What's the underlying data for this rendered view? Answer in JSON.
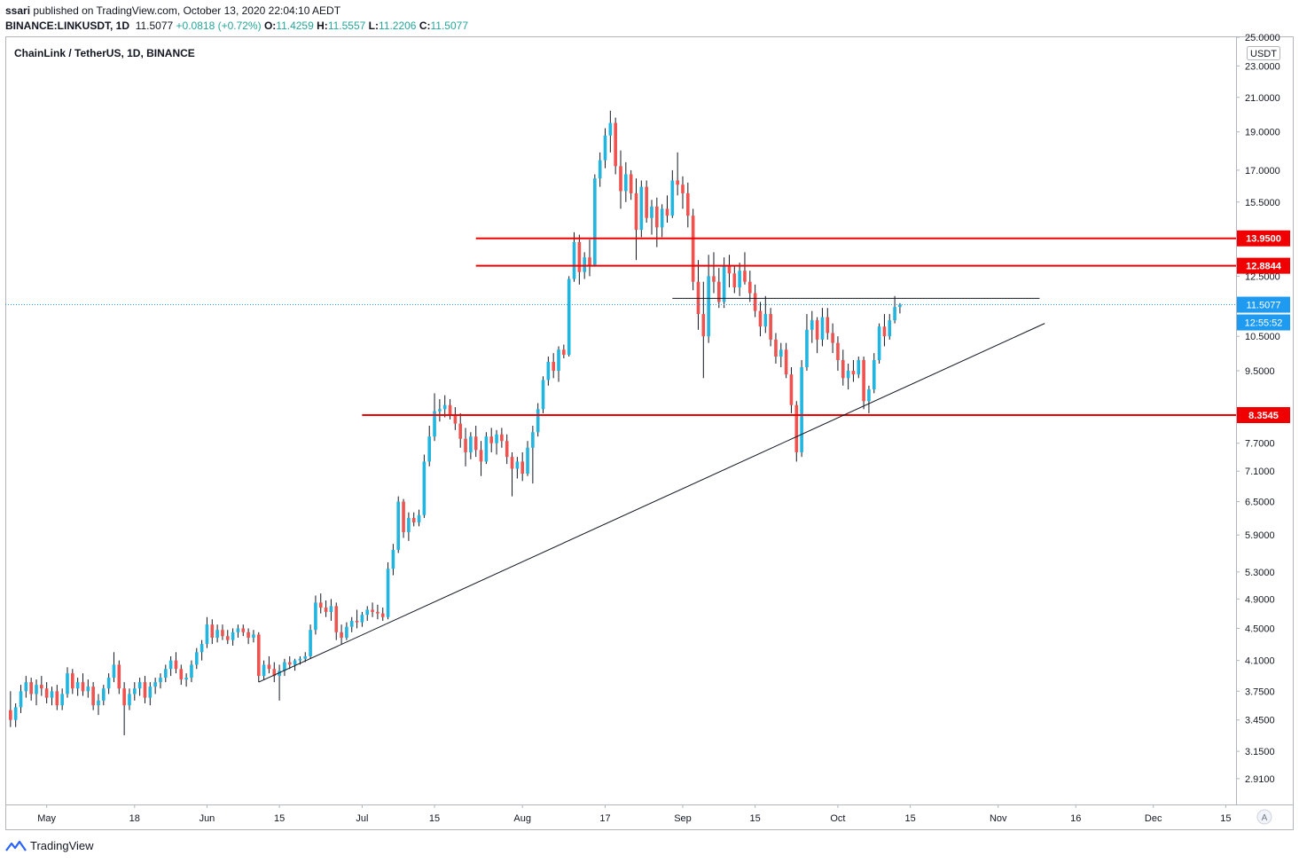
{
  "publish": {
    "author": "ssari",
    "text": "published on TradingView.com, October 13, 2020 22:04:10 AEDT"
  },
  "ohlc": {
    "symbol": "BINANCE:LINKUSDT, 1D",
    "last": "11.5077",
    "change": "+0.0818 (+0.72%)",
    "o_label": "O:",
    "o": "11.4259",
    "h_label": "H:",
    "h": "11.5557",
    "l_label": "L:",
    "l": "11.2206",
    "c_label": "C:",
    "c": "11.5077"
  },
  "chart_data": {
    "type": "candlestick",
    "title": "ChainLink / TetherUS, 1D, BINANCE",
    "currency": "USDT",
    "y_scale": "log",
    "ylim": [
      2.7,
      25.0
    ],
    "y_ticks": [
      "2.9100",
      "3.1500",
      "3.4500",
      "3.7500",
      "4.1000",
      "4.5000",
      "4.9000",
      "5.3000",
      "5.9000",
      "6.5000",
      "7.1000",
      "7.7000",
      "9.5000",
      "10.5000",
      "12.5000",
      "15.5000",
      "17.0000",
      "19.0000",
      "21.0000",
      "23.0000",
      "25.0000"
    ],
    "x_ticks": [
      "May",
      "18",
      "Jun",
      "15",
      "Jul",
      "15",
      "Aug",
      "17",
      "Sep",
      "15",
      "Oct",
      "15",
      "Nov",
      "16",
      "Dec",
      "15"
    ],
    "x_tick_dates": [
      "2020-05-01",
      "2020-05-18",
      "2020-06-01",
      "2020-06-15",
      "2020-07-01",
      "2020-07-15",
      "2020-08-01",
      "2020-08-17",
      "2020-09-01",
      "2020-09-15",
      "2020-10-01",
      "2020-10-15",
      "2020-11-01",
      "2020-11-16",
      "2020-12-01",
      "2020-12-15"
    ],
    "xlim": [
      "2020-04-23",
      "2020-12-17"
    ],
    "horizontal_levels": [
      {
        "price": 13.95,
        "label": "13.9500",
        "color": "#f00000",
        "start": "2020-07-23"
      },
      {
        "price": 12.8844,
        "label": "12.8844",
        "color": "#f00000",
        "start": "2020-07-23"
      },
      {
        "price": 8.3545,
        "label": "8.3545",
        "color": "#f00000",
        "start": "2020-07-01"
      }
    ],
    "resistance_line": {
      "price": 11.72,
      "start": "2020-08-30",
      "end": "2020-11-09"
    },
    "trendline": {
      "start_date": "2020-06-11",
      "start_price": 3.85,
      "end_date": "2020-11-10",
      "end_price": 10.9
    },
    "last_price": {
      "price": 11.5077,
      "label": "11.5077",
      "countdown": "12:55:52"
    },
    "candles": [
      [
        "2020-04-24",
        3.55,
        3.75,
        3.38,
        3.45
      ],
      [
        "2020-04-25",
        3.45,
        3.62,
        3.38,
        3.58
      ],
      [
        "2020-04-26",
        3.58,
        3.82,
        3.52,
        3.75
      ],
      [
        "2020-04-27",
        3.75,
        3.92,
        3.68,
        3.85
      ],
      [
        "2020-04-28",
        3.85,
        3.9,
        3.65,
        3.72
      ],
      [
        "2020-04-29",
        3.72,
        3.88,
        3.6,
        3.82
      ],
      [
        "2020-04-30",
        3.82,
        3.92,
        3.7,
        3.78
      ],
      [
        "2020-05-01",
        3.78,
        3.85,
        3.62,
        3.68
      ],
      [
        "2020-05-02",
        3.68,
        3.8,
        3.6,
        3.75
      ],
      [
        "2020-05-03",
        3.75,
        3.82,
        3.55,
        3.6
      ],
      [
        "2020-05-04",
        3.6,
        3.78,
        3.55,
        3.72
      ],
      [
        "2020-05-05",
        3.72,
        4.02,
        3.68,
        3.95
      ],
      [
        "2020-05-06",
        3.95,
        4.0,
        3.72,
        3.78
      ],
      [
        "2020-05-07",
        3.78,
        3.9,
        3.7,
        3.85
      ],
      [
        "2020-05-08",
        3.85,
        3.95,
        3.7,
        3.75
      ],
      [
        "2020-05-09",
        3.75,
        3.88,
        3.68,
        3.8
      ],
      [
        "2020-05-10",
        3.8,
        3.85,
        3.55,
        3.6
      ],
      [
        "2020-05-11",
        3.6,
        3.72,
        3.5,
        3.65
      ],
      [
        "2020-05-12",
        3.65,
        3.82,
        3.6,
        3.78
      ],
      [
        "2020-05-13",
        3.78,
        3.95,
        3.72,
        3.9
      ],
      [
        "2020-05-14",
        3.9,
        4.2,
        3.85,
        4.05
      ],
      [
        "2020-05-15",
        4.05,
        4.1,
        3.72,
        3.78
      ],
      [
        "2020-05-16",
        3.78,
        3.85,
        3.3,
        3.6
      ],
      [
        "2020-05-17",
        3.6,
        3.78,
        3.55,
        3.72
      ],
      [
        "2020-05-18",
        3.72,
        3.85,
        3.65,
        3.78
      ],
      [
        "2020-05-19",
        3.78,
        3.9,
        3.7,
        3.85
      ],
      [
        "2020-05-20",
        3.85,
        3.92,
        3.62,
        3.68
      ],
      [
        "2020-05-21",
        3.68,
        3.85,
        3.6,
        3.8
      ],
      [
        "2020-05-22",
        3.8,
        3.9,
        3.72,
        3.85
      ],
      [
        "2020-05-23",
        3.85,
        3.95,
        3.78,
        3.9
      ],
      [
        "2020-05-24",
        3.9,
        4.05,
        3.85,
        4.0
      ],
      [
        "2020-05-25",
        4.0,
        4.15,
        3.92,
        4.1
      ],
      [
        "2020-05-26",
        4.1,
        4.2,
        3.95,
        4.0
      ],
      [
        "2020-05-27",
        4.0,
        4.05,
        3.82,
        3.88
      ],
      [
        "2020-05-28",
        3.88,
        3.95,
        3.8,
        3.9
      ],
      [
        "2020-05-29",
        3.9,
        4.1,
        3.85,
        4.05
      ],
      [
        "2020-05-30",
        4.05,
        4.25,
        4.0,
        4.2
      ],
      [
        "2020-05-31",
        4.2,
        4.35,
        4.1,
        4.3
      ],
      [
        "2020-06-01",
        4.3,
        4.65,
        4.25,
        4.55
      ],
      [
        "2020-06-02",
        4.55,
        4.62,
        4.3,
        4.38
      ],
      [
        "2020-06-03",
        4.38,
        4.55,
        4.32,
        4.48
      ],
      [
        "2020-06-04",
        4.48,
        4.55,
        4.35,
        4.4
      ],
      [
        "2020-06-05",
        4.4,
        4.48,
        4.3,
        4.35
      ],
      [
        "2020-06-06",
        4.35,
        4.5,
        4.28,
        4.45
      ],
      [
        "2020-06-07",
        4.45,
        4.55,
        4.38,
        4.5
      ],
      [
        "2020-06-08",
        4.5,
        4.55,
        4.4,
        4.45
      ],
      [
        "2020-06-09",
        4.45,
        4.5,
        4.3,
        4.38
      ],
      [
        "2020-06-10",
        4.38,
        4.48,
        4.32,
        4.42
      ],
      [
        "2020-06-11",
        4.42,
        4.45,
        3.85,
        3.92
      ],
      [
        "2020-06-12",
        3.92,
        4.1,
        3.88,
        4.05
      ],
      [
        "2020-06-13",
        4.05,
        4.15,
        3.95,
        4.0
      ],
      [
        "2020-06-14",
        4.0,
        4.08,
        3.85,
        3.92
      ],
      [
        "2020-06-15",
        3.92,
        4.05,
        3.65,
        3.98
      ],
      [
        "2020-06-16",
        3.98,
        4.12,
        3.92,
        4.08
      ],
      [
        "2020-06-17",
        4.08,
        4.15,
        4.0,
        4.05
      ],
      [
        "2020-06-18",
        4.05,
        4.12,
        3.98,
        4.1
      ],
      [
        "2020-06-19",
        4.1,
        4.15,
        4.05,
        4.12
      ],
      [
        "2020-06-20",
        4.12,
        4.2,
        4.08,
        4.15
      ],
      [
        "2020-06-21",
        4.15,
        4.55,
        4.12,
        4.48
      ],
      [
        "2020-06-22",
        4.48,
        4.95,
        4.42,
        4.85
      ],
      [
        "2020-06-23",
        4.85,
        4.98,
        4.7,
        4.78
      ],
      [
        "2020-06-24",
        4.78,
        4.88,
        4.65,
        4.72
      ],
      [
        "2020-06-25",
        4.72,
        4.9,
        4.6,
        4.8
      ],
      [
        "2020-06-26",
        4.8,
        4.85,
        4.35,
        4.45
      ],
      [
        "2020-06-27",
        4.45,
        4.55,
        4.3,
        4.38
      ],
      [
        "2020-06-28",
        4.38,
        4.58,
        4.35,
        4.52
      ],
      [
        "2020-06-29",
        4.52,
        4.65,
        4.45,
        4.6
      ],
      [
        "2020-06-30",
        4.6,
        4.75,
        4.5,
        4.58
      ],
      [
        "2020-07-01",
        4.58,
        4.72,
        4.52,
        4.68
      ],
      [
        "2020-07-02",
        4.68,
        4.8,
        4.6,
        4.75
      ],
      [
        "2020-07-03",
        4.75,
        4.85,
        4.65,
        4.72
      ],
      [
        "2020-07-04",
        4.72,
        4.82,
        4.62,
        4.7
      ],
      [
        "2020-07-05",
        4.7,
        4.78,
        4.6,
        4.65
      ],
      [
        "2020-07-06",
        4.65,
        5.45,
        4.62,
        5.35
      ],
      [
        "2020-07-07",
        5.35,
        5.75,
        5.25,
        5.65
      ],
      [
        "2020-07-08",
        5.65,
        6.6,
        5.6,
        6.5
      ],
      [
        "2020-07-09",
        6.5,
        6.55,
        5.85,
        5.95
      ],
      [
        "2020-07-10",
        5.95,
        6.3,
        5.8,
        6.2
      ],
      [
        "2020-07-11",
        6.2,
        6.3,
        6.05,
        6.12
      ],
      [
        "2020-07-12",
        6.12,
        6.35,
        6.05,
        6.25
      ],
      [
        "2020-07-13",
        6.25,
        7.45,
        6.2,
        7.3
      ],
      [
        "2020-07-14",
        7.3,
        8.1,
        7.2,
        7.85
      ],
      [
        "2020-07-15",
        7.85,
        8.9,
        7.75,
        8.45
      ],
      [
        "2020-07-16",
        8.45,
        8.75,
        8.2,
        8.5
      ],
      [
        "2020-07-17",
        8.5,
        8.85,
        8.3,
        8.6
      ],
      [
        "2020-07-18",
        8.6,
        8.75,
        8.25,
        8.35
      ],
      [
        "2020-07-19",
        8.35,
        8.55,
        8.0,
        8.15
      ],
      [
        "2020-07-20",
        8.15,
        8.4,
        7.6,
        7.8
      ],
      [
        "2020-07-21",
        7.8,
        8.05,
        7.2,
        7.5
      ],
      [
        "2020-07-22",
        7.5,
        7.95,
        7.35,
        7.85
      ],
      [
        "2020-07-23",
        7.85,
        8.1,
        7.4,
        7.55
      ],
      [
        "2020-07-24",
        7.55,
        7.75,
        7.0,
        7.3
      ],
      [
        "2020-07-25",
        7.3,
        7.95,
        7.25,
        7.85
      ],
      [
        "2020-07-26",
        7.85,
        8.05,
        7.5,
        7.7
      ],
      [
        "2020-07-27",
        7.7,
        8.0,
        7.45,
        7.9
      ],
      [
        "2020-07-28",
        7.9,
        8.05,
        7.6,
        7.75
      ],
      [
        "2020-07-29",
        7.75,
        7.9,
        7.25,
        7.4
      ],
      [
        "2020-07-30",
        7.4,
        7.5,
        6.6,
        7.15
      ],
      [
        "2020-07-31",
        7.15,
        7.4,
        6.95,
        7.3
      ],
      [
        "2020-08-01",
        7.3,
        7.5,
        6.9,
        7.05
      ],
      [
        "2020-08-02",
        7.05,
        7.75,
        7.0,
        7.6
      ],
      [
        "2020-08-03",
        7.6,
        8.1,
        6.85,
        7.95
      ],
      [
        "2020-08-04",
        7.95,
        8.65,
        7.85,
        8.5
      ],
      [
        "2020-08-05",
        8.5,
        9.35,
        8.4,
        9.25
      ],
      [
        "2020-08-06",
        9.25,
        9.9,
        9.1,
        9.75
      ],
      [
        "2020-08-07",
        9.75,
        10.0,
        9.3,
        9.5
      ],
      [
        "2020-08-08",
        9.5,
        10.2,
        9.2,
        10.1
      ],
      [
        "2020-08-09",
        10.1,
        10.25,
        9.85,
        9.95
      ],
      [
        "2020-08-10",
        9.95,
        12.5,
        9.9,
        12.4
      ],
      [
        "2020-08-11",
        12.4,
        14.2,
        12.3,
        13.8
      ],
      [
        "2020-08-12",
        13.8,
        14.1,
        12.2,
        12.65
      ],
      [
        "2020-08-13",
        12.65,
        13.4,
        12.4,
        13.2
      ],
      [
        "2020-08-14",
        13.2,
        13.9,
        12.5,
        12.9
      ],
      [
        "2020-08-15",
        12.9,
        16.8,
        12.85,
        16.6
      ],
      [
        "2020-08-16",
        16.6,
        17.9,
        16.2,
        17.5
      ],
      [
        "2020-08-17",
        17.5,
        19.2,
        17.1,
        18.8
      ],
      [
        "2020-08-18",
        18.8,
        20.2,
        17.9,
        19.5
      ],
      [
        "2020-08-19",
        19.5,
        19.8,
        16.8,
        17.2
      ],
      [
        "2020-08-20",
        17.2,
        18.0,
        15.2,
        16.0
      ],
      [
        "2020-08-21",
        16.0,
        17.4,
        15.5,
        16.8
      ],
      [
        "2020-08-22",
        16.8,
        17.0,
        15.6,
        15.9
      ],
      [
        "2020-08-23",
        15.9,
        16.6,
        13.1,
        14.3
      ],
      [
        "2020-08-24",
        14.3,
        16.5,
        14.0,
        16.2
      ],
      [
        "2020-08-25",
        16.2,
        16.5,
        14.6,
        14.8
      ],
      [
        "2020-08-26",
        14.8,
        15.6,
        14.1,
        15.3
      ],
      [
        "2020-08-27",
        15.3,
        15.7,
        13.6,
        14.4
      ],
      [
        "2020-08-28",
        14.4,
        15.4,
        14.0,
        15.2
      ],
      [
        "2020-08-29",
        15.2,
        15.8,
        14.6,
        14.9
      ],
      [
        "2020-08-30",
        14.9,
        17.0,
        14.8,
        16.5
      ],
      [
        "2020-08-31",
        16.5,
        17.9,
        15.8,
        16.3
      ],
      [
        "2020-09-01",
        16.3,
        16.7,
        15.2,
        15.9
      ],
      [
        "2020-09-02",
        15.9,
        16.4,
        14.4,
        14.9
      ],
      [
        "2020-09-03",
        14.9,
        15.2,
        12.0,
        12.3
      ],
      [
        "2020-09-04",
        12.3,
        13.1,
        10.7,
        11.2
      ],
      [
        "2020-09-05",
        11.2,
        12.3,
        9.3,
        10.5
      ],
      [
        "2020-09-06",
        10.5,
        13.3,
        10.3,
        12.5
      ],
      [
        "2020-09-07",
        12.5,
        13.4,
        11.9,
        12.3
      ],
      [
        "2020-09-08",
        12.3,
        12.8,
        11.4,
        11.6
      ],
      [
        "2020-09-09",
        11.6,
        13.2,
        11.4,
        12.9
      ],
      [
        "2020-09-10",
        12.9,
        13.3,
        12.1,
        12.6
      ],
      [
        "2020-09-11",
        12.6,
        12.9,
        11.9,
        12.1
      ],
      [
        "2020-09-12",
        12.1,
        13.0,
        11.8,
        12.7
      ],
      [
        "2020-09-13",
        12.7,
        13.4,
        12.2,
        12.3
      ],
      [
        "2020-09-14",
        12.3,
        12.7,
        11.6,
        11.9
      ],
      [
        "2020-09-15",
        11.9,
        12.2,
        11.1,
        11.3
      ],
      [
        "2020-09-16",
        11.3,
        11.6,
        10.5,
        10.8
      ],
      [
        "2020-09-17",
        10.8,
        11.8,
        10.6,
        11.2
      ],
      [
        "2020-09-18",
        11.2,
        11.4,
        10.2,
        10.4
      ],
      [
        "2020-09-19",
        10.4,
        10.6,
        9.7,
        9.9
      ],
      [
        "2020-09-20",
        9.9,
        10.3,
        9.6,
        10.1
      ],
      [
        "2020-09-21",
        10.1,
        10.3,
        9.3,
        9.4
      ],
      [
        "2020-09-22",
        9.4,
        9.6,
        8.4,
        8.6
      ],
      [
        "2020-09-23",
        8.6,
        8.7,
        7.3,
        7.5
      ],
      [
        "2020-09-24",
        7.5,
        9.8,
        7.4,
        9.6
      ],
      [
        "2020-09-25",
        9.6,
        11.2,
        9.5,
        10.7
      ],
      [
        "2020-09-26",
        10.7,
        11.3,
        10.3,
        11.0
      ],
      [
        "2020-09-27",
        11.0,
        11.1,
        10.0,
        10.4
      ],
      [
        "2020-09-28",
        10.4,
        11.4,
        10.2,
        11.1
      ],
      [
        "2020-09-29",
        11.1,
        11.4,
        10.4,
        10.6
      ],
      [
        "2020-09-30",
        10.6,
        10.9,
        10.0,
        10.3
      ],
      [
        "2020-10-01",
        10.3,
        10.5,
        9.5,
        9.8
      ],
      [
        "2020-10-02",
        9.8,
        10.1,
        9.1,
        9.3
      ],
      [
        "2020-10-03",
        9.3,
        9.7,
        9.0,
        9.5
      ],
      [
        "2020-10-04",
        9.5,
        9.8,
        9.2,
        9.4
      ],
      [
        "2020-10-05",
        9.4,
        9.9,
        9.3,
        9.8
      ],
      [
        "2020-10-06",
        9.8,
        9.9,
        8.5,
        8.7
      ],
      [
        "2020-10-07",
        8.7,
        9.1,
        8.4,
        9.0
      ],
      [
        "2020-10-08",
        9.0,
        10.0,
        8.9,
        9.8
      ],
      [
        "2020-10-09",
        9.8,
        10.9,
        9.7,
        10.8
      ],
      [
        "2020-10-10",
        10.8,
        11.2,
        10.2,
        10.5
      ],
      [
        "2020-10-11",
        10.5,
        11.2,
        10.4,
        11.0
      ],
      [
        "2020-10-12",
        11.0,
        11.8,
        10.9,
        11.43
      ],
      [
        "2020-10-13",
        11.43,
        11.56,
        11.22,
        11.51
      ]
    ]
  },
  "footer": {
    "brand": "TradingView"
  },
  "icons": {
    "auto_scale": "A"
  }
}
